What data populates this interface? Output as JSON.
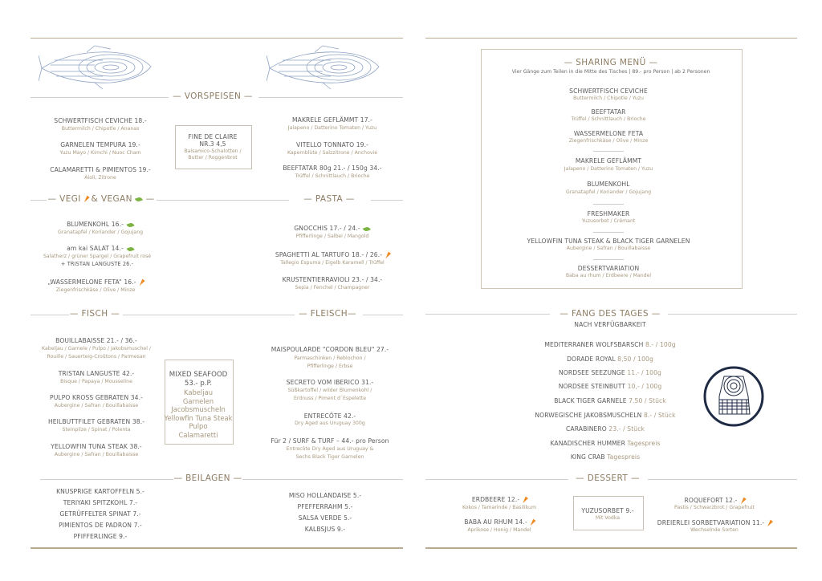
{
  "vorspeisen": {
    "title": "— VORSPEISEN —",
    "left": [
      {
        "name": "SCHWERTFISCH CEVICHE 18.-",
        "desc": "Buttermilch / Chipotle / Ananas"
      },
      {
        "name": "GARNELEN TEMPURA  19.-",
        "desc": "Yuzu Mayo / Kimchi / Nuoc Cham"
      },
      {
        "name": "CALAMARETTI & PIMIENTOS 19.-",
        "desc": "Aioli, Zitrone"
      }
    ],
    "box": {
      "line1": "FINE DE CLAIRE",
      "line2": "NR.3   4,5",
      "line3": "Balsamico-Schalotten /",
      "line4": "Butter / Roggenbrot"
    },
    "right": [
      {
        "name": "MAKRELE GEFLÄMMT 17.-",
        "desc": "Jalapeno / Datterino Tomaten / Yuzu"
      },
      {
        "name": "VITELLO TONNATO 19.-",
        "desc": "Kapernblüte / Salzzitrone / Anchovie"
      },
      {
        "name": "BEEFTATAR 80g 21.- / 150g 34.-",
        "desc": "Trüffel / Schnittlauch / Brioche"
      }
    ]
  },
  "vegi": {
    "title_a": "— VEGI",
    "title_b": "& VEGAN",
    "title_c": "—",
    "items": [
      {
        "name": "BLUMENKOHL 16.-",
        "desc": "Granatapfel / Koriander / Gojujang",
        "icon": "leaf"
      },
      {
        "name": "am kai SALAT 14.-",
        "desc": "Salatherz / grüner Spargel / Grapefruit rosé",
        "extra": "+ TRISTAN LANGUSTE 26.-",
        "icon": "leaf"
      },
      {
        "name": "„WASSERMELONE FETA“  16.-",
        "desc": "Ziegenfrischkäse / Olive / Minze",
        "icon": "carrot"
      }
    ]
  },
  "pasta": {
    "title": "— PASTA —",
    "items": [
      {
        "name": "GNOCCHIS  17.- / 24.-",
        "desc": "Pfifferlinge / Salbei / Mangold",
        "icon": "leaf"
      },
      {
        "name": "SPAGHETTI AL TARTUFO   18.- / 26.-",
        "desc": "Tallegio Espuma / Eigelb Karamell / Trüffel",
        "icon": "carrot"
      },
      {
        "name": "KRUSTENTIERRAVIOLI 23.- / 34.-",
        "desc": "Sepia / Fenchel / Champagner"
      }
    ]
  },
  "fisch": {
    "title": "— FISCH —",
    "items": [
      {
        "name": "BOUILLABAISSE 21.- /  36.-",
        "desc": "Kabeljau / Garnele / Pulpo  / Jakobsmuschel /",
        "desc2": "Rouille / Sauerteig-Croûtons / Parmesan"
      },
      {
        "name": "TRISTAN LANGUSTE  42.-",
        "desc": "Bisque / Papaya / Mousseline"
      },
      {
        "name": "PULPO KROSS GEBRATEN  34.-",
        "desc": "Aubergine / Safran / Bouillabaisse"
      },
      {
        "name": "HEILBUTTFILET GEBRATEN  38.-",
        "desc": "Steinpilze / Spinat / Polenta"
      },
      {
        "name": "YELLOWFIN TUNA STEAK  38.-",
        "desc": "Aubergine / Safran / Bouillabaisse"
      }
    ]
  },
  "mixed_seafood": {
    "title": "MIXED SEAFOOD",
    "price": "53.- p.P.",
    "items": [
      "Kabeljau",
      "Garnelen",
      "Jacobsmuscheln",
      "Yellowfin Tuna Steak",
      "Pulpo",
      "Calamaretti"
    ]
  },
  "fleisch": {
    "title": "— FLEISCH—",
    "items": [
      {
        "name": "MAISPOULARDE \"CORDON BLEU\" 27.-",
        "desc": "Parmaschinken / Reblochon /",
        "desc2": "Pfifferlinge / Erbse"
      },
      {
        "name": "SECRETO VOM IBERICO 31.-",
        "desc": "Süßkartoffel / wilder Blumenkohl /",
        "desc2": "Erdnuss / Piment d´Espelette"
      },
      {
        "name": "ENTRECÔTE 42.-",
        "desc": "Dry Aged aus Uruguay 300g"
      },
      {
        "name": "Für 2 / SURF & TURF – 44.- pro Person",
        "desc": "Entrecôte Dry Aged aus Uruguay &",
        "desc2": "Sechs Black Tiger Garnelen"
      }
    ]
  },
  "beilagen": {
    "title": "— BEILAGEN —",
    "left": [
      "KNUSPRIGE KARTOFFELN 5.-",
      "TERIYAKI SPITZKOHL 7.-",
      "GETRÜFFELTER SPINAT 7.-",
      "PIMIENTOS DE PADRON 7.-",
      "PFIFFERLINGE 9.-"
    ],
    "right": [
      "MISO HOLLANDAISE 5.-",
      "PFEFFERRAHM 5.-",
      "SALSA VERDE 5.-",
      "KALBSJUS 9.-"
    ]
  },
  "sharing": {
    "title": "— SHARING MENÜ —",
    "subtitle": "Vier Gänge zum Teilen in die Mitte des Tisches | 89.- pro Person | ab 2 Personen",
    "items": [
      {
        "name": "SCHWERTFISCH CEVICHE",
        "desc": "Buttermilch / Chipotle / Yuzu"
      },
      {
        "name": "BEEFTATAR",
        "desc": "Trüffel / Schnittlauch / Brioche"
      },
      {
        "name": "WASSERMELONE FETA",
        "desc": "Ziegenfrischkäse / Olive / Minze"
      },
      {
        "name": "MAKRELE GEFLÄMMT",
        "desc": "Jalapeno / Datterino Tomaten / Yuzu"
      },
      {
        "name": "BLUMENKOHL",
        "desc": "Granatapfel / Koriander / Gojujang"
      },
      {
        "name": "FRESHMAKER",
        "desc": "Yuzusorbet / Crémant"
      },
      {
        "name": "YELLOWFIN TUNA STEAK  &  BLACK TIGER GARNELEN",
        "desc": "Aubergine / Safran / Bouillabaisse"
      },
      {
        "name": "DESSERTVARIATION",
        "desc": "Baba au rhum / Erdbeere / Mandel"
      }
    ]
  },
  "fang": {
    "title": "— FANG DES TAGES —",
    "subtitle": "NACH VERFÜGBARKEIT",
    "items": [
      {
        "name": "MEDITERRANER WOLFSBARSCH",
        "price": "8.- / 100g"
      },
      {
        "name": "DORADE ROYAL",
        "price": "8,50 / 100g"
      },
      {
        "name": "NORDSEE SEEZUNGE",
        "price": "11.- / 100g"
      },
      {
        "name": "NORDSEE STEINBUTT",
        "price": "10,- / 100g"
      },
      {
        "name": "BLACK TIGER GARNELE",
        "price": "7.50 / Stück"
      },
      {
        "name": "NORWEGISCHE JAKOBSMUSCHELN",
        "price": "8.- / Stück"
      },
      {
        "name": "CARABINERO",
        "price": "23.- / Stück"
      },
      {
        "name": "KANADISCHER HUMMER",
        "price": "Tagespreis"
      },
      {
        "name": "KING CRAB",
        "price": "Tagespreis"
      }
    ]
  },
  "dessert": {
    "title": "— DESSERT —",
    "left": [
      {
        "name": "ERDBEERE 12.-",
        "desc": "Kokos / Tamarinde / Basilikum",
        "icon": "carrot"
      },
      {
        "name": "BABA AU RHUM  14.-",
        "desc": "Aprikose / Honig / Mandel",
        "icon": "carrot"
      }
    ],
    "box": {
      "name": "YUZUSORBET  9.-",
      "desc": "Mit Vodka"
    },
    "right": [
      {
        "name": "ROQUEFORT  12.-",
        "desc": "Pastis / Schwarzbrot / Grapefruit",
        "icon": "carrot"
      },
      {
        "name": "DREIERLEI SORBETVARIATION  11.-",
        "desc": "Wechselnde Sorten",
        "icon": "carrot"
      }
    ]
  },
  "colors": {
    "accent": "#8d7c62",
    "desc": "#a8987e",
    "text": "#5a5a5a",
    "fish_illustration": "#8fa3c4",
    "emblem": "#1f2a44",
    "leaf": "#7cb342",
    "carrot": "#f08a24"
  }
}
